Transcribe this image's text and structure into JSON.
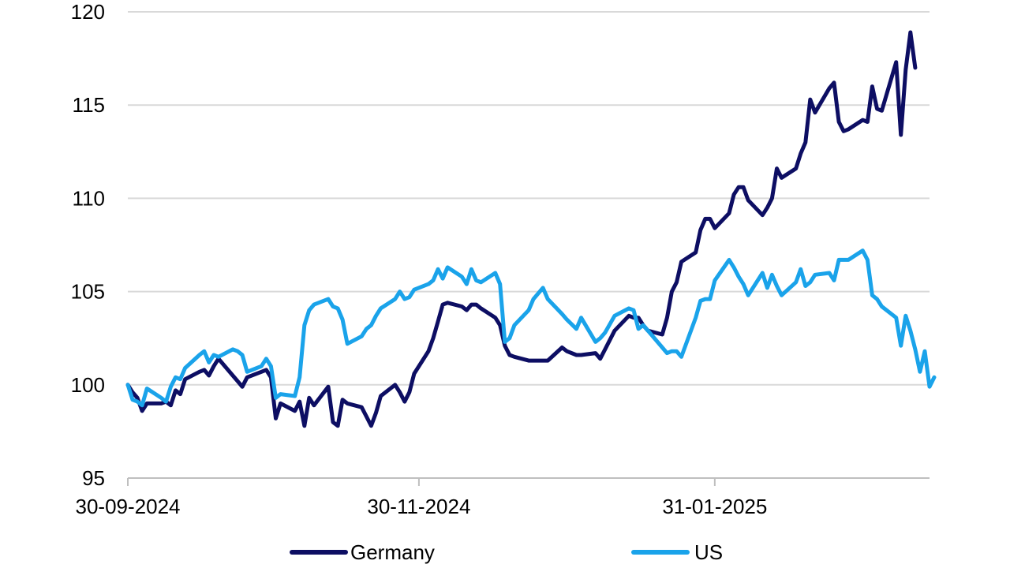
{
  "chart_data": {
    "type": "line",
    "title": "",
    "xlabel": "",
    "ylabel": "",
    "ylim": [
      95,
      120
    ],
    "yticks": [
      95,
      100,
      105,
      110,
      115,
      120
    ],
    "xticks": [
      {
        "date": "2024-09-30",
        "label": "30-09-2024"
      },
      {
        "date": "2024-11-30",
        "label": "30-11-2024"
      },
      {
        "date": "2025-01-31",
        "label": "31-01-2025"
      }
    ],
    "xlim": [
      "2024-09-30",
      "2025-03-17"
    ],
    "grid": true,
    "legend_position": "bottom",
    "series": [
      {
        "name": "Germany",
        "color": "#0d0e63",
        "points": [
          [
            "2024-09-30",
            100.0
          ],
          [
            "2024-10-01",
            99.6
          ],
          [
            "2024-10-02",
            99.3
          ],
          [
            "2024-10-03",
            98.6
          ],
          [
            "2024-10-04",
            99.0
          ],
          [
            "2024-10-07",
            99.0
          ],
          [
            "2024-10-08",
            99.1
          ],
          [
            "2024-10-09",
            98.9
          ],
          [
            "2024-10-10",
            99.7
          ],
          [
            "2024-10-11",
            99.5
          ],
          [
            "2024-10-12",
            100.3
          ],
          [
            "2024-10-15",
            100.7
          ],
          [
            "2024-10-16",
            100.8
          ],
          [
            "2024-10-17",
            100.5
          ],
          [
            "2024-10-18",
            101.0
          ],
          [
            "2024-10-19",
            101.4
          ],
          [
            "2024-10-22",
            100.5
          ],
          [
            "2024-10-23",
            100.2
          ],
          [
            "2024-10-24",
            99.9
          ],
          [
            "2024-10-25",
            100.4
          ],
          [
            "2024-10-28",
            100.7
          ],
          [
            "2024-10-29",
            100.8
          ],
          [
            "2024-10-30",
            100.4
          ],
          [
            "2024-10-31",
            98.2
          ],
          [
            "2024-11-01",
            99.0
          ],
          [
            "2024-11-04",
            98.6
          ],
          [
            "2024-11-05",
            99.1
          ],
          [
            "2024-11-06",
            97.8
          ],
          [
            "2024-11-07",
            99.3
          ],
          [
            "2024-11-08",
            98.9
          ],
          [
            "2024-11-11",
            99.9
          ],
          [
            "2024-11-12",
            98.0
          ],
          [
            "2024-11-13",
            97.8
          ],
          [
            "2024-11-14",
            99.2
          ],
          [
            "2024-11-15",
            99.0
          ],
          [
            "2024-11-18",
            98.8
          ],
          [
            "2024-11-19",
            98.3
          ],
          [
            "2024-11-20",
            97.8
          ],
          [
            "2024-11-21",
            98.5
          ],
          [
            "2024-11-22",
            99.4
          ],
          [
            "2024-11-25",
            100.0
          ],
          [
            "2024-11-26",
            99.6
          ],
          [
            "2024-11-27",
            99.1
          ],
          [
            "2024-11-28",
            99.6
          ],
          [
            "2024-11-29",
            100.6
          ],
          [
            "2024-12-02",
            101.8
          ],
          [
            "2024-12-03",
            102.5
          ],
          [
            "2024-12-04",
            103.4
          ],
          [
            "2024-12-05",
            104.3
          ],
          [
            "2024-12-06",
            104.4
          ],
          [
            "2024-12-09",
            104.2
          ],
          [
            "2024-12-10",
            104.0
          ],
          [
            "2024-12-11",
            104.3
          ],
          [
            "2024-12-12",
            104.3
          ],
          [
            "2024-12-13",
            104.1
          ],
          [
            "2024-12-16",
            103.6
          ],
          [
            "2024-12-17",
            103.2
          ],
          [
            "2024-12-18",
            102.1
          ],
          [
            "2024-12-19",
            101.6
          ],
          [
            "2024-12-20",
            101.5
          ],
          [
            "2024-12-23",
            101.3
          ],
          [
            "2024-12-24",
            101.3
          ],
          [
            "2024-12-27",
            101.3
          ],
          [
            "2024-12-30",
            102.0
          ],
          [
            "2024-12-31",
            101.8
          ],
          [
            "2025-01-02",
            101.6
          ],
          [
            "2025-01-03",
            101.6
          ],
          [
            "2025-01-06",
            101.7
          ],
          [
            "2025-01-07",
            101.4
          ],
          [
            "2025-01-08",
            101.9
          ],
          [
            "2025-01-09",
            102.4
          ],
          [
            "2025-01-10",
            102.9
          ],
          [
            "2025-01-13",
            103.7
          ],
          [
            "2025-01-14",
            103.6
          ],
          [
            "2025-01-15",
            103.6
          ],
          [
            "2025-01-16",
            103.2
          ],
          [
            "2025-01-17",
            102.9
          ],
          [
            "2025-01-20",
            102.7
          ],
          [
            "2025-01-21",
            103.6
          ],
          [
            "2025-01-22",
            105.0
          ],
          [
            "2025-01-23",
            105.5
          ],
          [
            "2025-01-24",
            106.6
          ],
          [
            "2025-01-27",
            107.1
          ],
          [
            "2025-01-28",
            108.3
          ],
          [
            "2025-01-29",
            108.9
          ],
          [
            "2025-01-30",
            108.9
          ],
          [
            "2025-01-31",
            108.4
          ],
          [
            "2025-02-03",
            109.2
          ],
          [
            "2025-02-04",
            110.2
          ],
          [
            "2025-02-05",
            110.6
          ],
          [
            "2025-02-06",
            110.6
          ],
          [
            "2025-02-07",
            109.9
          ],
          [
            "2025-02-10",
            109.1
          ],
          [
            "2025-02-11",
            109.5
          ],
          [
            "2025-02-12",
            110.0
          ],
          [
            "2025-02-13",
            111.6
          ],
          [
            "2025-02-14",
            111.1
          ],
          [
            "2025-02-17",
            111.6
          ],
          [
            "2025-02-18",
            112.4
          ],
          [
            "2025-02-19",
            113.0
          ],
          [
            "2025-02-20",
            115.3
          ],
          [
            "2025-02-21",
            114.6
          ],
          [
            "2025-02-24",
            115.9
          ],
          [
            "2025-02-25",
            116.2
          ],
          [
            "2025-02-26",
            114.1
          ],
          [
            "2025-02-27",
            113.6
          ],
          [
            "2025-02-28",
            113.7
          ],
          [
            "2025-03-03",
            114.2
          ],
          [
            "2025-03-04",
            114.1
          ],
          [
            "2025-03-05",
            116.0
          ],
          [
            "2025-03-06",
            114.8
          ],
          [
            "2025-03-07",
            114.7
          ],
          [
            "2025-03-10",
            117.3
          ],
          [
            "2025-03-11",
            113.4
          ],
          [
            "2025-03-12",
            116.9
          ],
          [
            "2025-03-13",
            118.9
          ],
          [
            "2025-03-14",
            117.0
          ]
        ]
      },
      {
        "name": "US",
        "color": "#1aa3ea",
        "points": [
          [
            "2024-09-30",
            100.0
          ],
          [
            "2024-10-01",
            99.2
          ],
          [
            "2024-10-02",
            99.1
          ],
          [
            "2024-10-03",
            98.9
          ],
          [
            "2024-10-04",
            99.8
          ],
          [
            "2024-10-07",
            99.3
          ],
          [
            "2024-10-08",
            99.1
          ],
          [
            "2024-10-09",
            99.9
          ],
          [
            "2024-10-10",
            100.4
          ],
          [
            "2024-10-11",
            100.3
          ],
          [
            "2024-10-12",
            100.9
          ],
          [
            "2024-10-15",
            101.6
          ],
          [
            "2024-10-16",
            101.8
          ],
          [
            "2024-10-17",
            101.2
          ],
          [
            "2024-10-18",
            101.6
          ],
          [
            "2024-10-19",
            101.5
          ],
          [
            "2024-10-22",
            101.9
          ],
          [
            "2024-10-23",
            101.8
          ],
          [
            "2024-10-24",
            101.6
          ],
          [
            "2024-10-25",
            100.7
          ],
          [
            "2024-10-28",
            101.0
          ],
          [
            "2024-10-29",
            101.4
          ],
          [
            "2024-10-30",
            101.0
          ],
          [
            "2024-10-31",
            99.3
          ],
          [
            "2024-11-01",
            99.5
          ],
          [
            "2024-11-04",
            99.4
          ],
          [
            "2024-11-05",
            100.4
          ],
          [
            "2024-11-06",
            103.2
          ],
          [
            "2024-11-07",
            104.0
          ],
          [
            "2024-11-08",
            104.3
          ],
          [
            "2024-11-11",
            104.6
          ],
          [
            "2024-11-12",
            104.2
          ],
          [
            "2024-11-13",
            104.1
          ],
          [
            "2024-11-14",
            103.5
          ],
          [
            "2024-11-15",
            102.2
          ],
          [
            "2024-11-18",
            102.6
          ],
          [
            "2024-11-19",
            103.0
          ],
          [
            "2024-11-20",
            103.2
          ],
          [
            "2024-11-21",
            103.7
          ],
          [
            "2024-11-22",
            104.1
          ],
          [
            "2024-11-25",
            104.6
          ],
          [
            "2024-11-26",
            105.0
          ],
          [
            "2024-11-27",
            104.6
          ],
          [
            "2024-11-28",
            104.7
          ],
          [
            "2024-11-29",
            105.1
          ],
          [
            "2024-12-02",
            105.4
          ],
          [
            "2024-12-03",
            105.6
          ],
          [
            "2024-12-04",
            106.2
          ],
          [
            "2024-12-05",
            105.7
          ],
          [
            "2024-12-06",
            106.3
          ],
          [
            "2024-12-09",
            105.8
          ],
          [
            "2024-12-10",
            105.4
          ],
          [
            "2024-12-11",
            106.2
          ],
          [
            "2024-12-12",
            105.6
          ],
          [
            "2024-12-13",
            105.5
          ],
          [
            "2024-12-16",
            106.0
          ],
          [
            "2024-12-17",
            105.4
          ],
          [
            "2024-12-18",
            102.3
          ],
          [
            "2024-12-19",
            102.5
          ],
          [
            "2024-12-20",
            103.2
          ],
          [
            "2024-12-23",
            104.0
          ],
          [
            "2024-12-24",
            104.6
          ],
          [
            "2024-12-26",
            105.2
          ],
          [
            "2024-12-27",
            104.6
          ],
          [
            "2024-12-30",
            103.8
          ],
          [
            "2024-12-31",
            103.5
          ],
          [
            "2025-01-02",
            103.0
          ],
          [
            "2025-01-03",
            103.6
          ],
          [
            "2025-01-06",
            102.3
          ],
          [
            "2025-01-07",
            102.5
          ],
          [
            "2025-01-08",
            102.8
          ],
          [
            "2025-01-10",
            103.7
          ],
          [
            "2025-01-13",
            104.1
          ],
          [
            "2025-01-14",
            104.0
          ],
          [
            "2025-01-15",
            103.0
          ],
          [
            "2025-01-16",
            103.2
          ],
          [
            "2025-01-17",
            102.9
          ],
          [
            "2025-01-21",
            101.7
          ],
          [
            "2025-01-22",
            101.8
          ],
          [
            "2025-01-23",
            101.8
          ],
          [
            "2025-01-24",
            101.5
          ],
          [
            "2025-01-27",
            103.6
          ],
          [
            "2025-01-28",
            104.5
          ],
          [
            "2025-01-29",
            104.6
          ],
          [
            "2025-01-30",
            104.6
          ],
          [
            "2025-01-31",
            105.6
          ],
          [
            "2025-02-03",
            106.7
          ],
          [
            "2025-02-04",
            106.3
          ],
          [
            "2025-02-05",
            105.8
          ],
          [
            "2025-02-06",
            105.4
          ],
          [
            "2025-02-07",
            104.8
          ],
          [
            "2025-02-10",
            106.0
          ],
          [
            "2025-02-11",
            105.2
          ],
          [
            "2025-02-12",
            105.9
          ],
          [
            "2025-02-13",
            105.3
          ],
          [
            "2025-02-14",
            104.8
          ],
          [
            "2025-02-17",
            105.5
          ],
          [
            "2025-02-18",
            106.2
          ],
          [
            "2025-02-19",
            105.3
          ],
          [
            "2025-02-20",
            105.5
          ],
          [
            "2025-02-21",
            105.9
          ],
          [
            "2025-02-24",
            106.0
          ],
          [
            "2025-02-25",
            105.6
          ],
          [
            "2025-02-26",
            106.7
          ],
          [
            "2025-02-27",
            106.7
          ],
          [
            "2025-02-28",
            106.7
          ],
          [
            "2025-03-03",
            107.2
          ],
          [
            "2025-03-04",
            106.7
          ],
          [
            "2025-03-05",
            104.8
          ],
          [
            "2025-03-06",
            104.6
          ],
          [
            "2025-03-07",
            104.2
          ],
          [
            "2025-03-10",
            103.6
          ],
          [
            "2025-03-11",
            102.1
          ],
          [
            "2025-03-12",
            103.7
          ],
          [
            "2025-03-13",
            102.9
          ],
          [
            "2025-03-14",
            101.9
          ],
          [
            "2025-03-15",
            100.7
          ],
          [
            "2025-03-16",
            101.8
          ],
          [
            "2025-03-17",
            99.9
          ],
          [
            "2025-03-18",
            100.4
          ]
        ]
      }
    ]
  }
}
